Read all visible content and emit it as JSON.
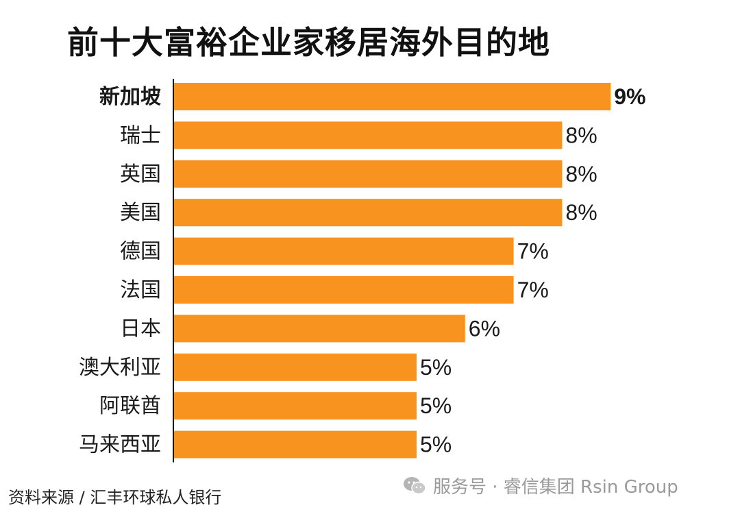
{
  "title": "前十大富裕企业家移居海外目的地",
  "source": "资料来源 / 汇丰环球私人银行",
  "watermark": {
    "text": "服务号 · 睿信集团 Rsin Group",
    "icon": "wechat-icon"
  },
  "colors": {
    "bar": "#F7931E",
    "text": "#1a1a1a",
    "axis": "#111111",
    "watermark": "#9a9a9a"
  },
  "chart_data": {
    "type": "bar",
    "orientation": "horizontal",
    "categories": [
      "新加坡",
      "瑞士",
      "英国",
      "美国",
      "德国",
      "法国",
      "日本",
      "澳大利亚",
      "阿联酋",
      "马来西亚"
    ],
    "values": [
      9,
      8,
      8,
      8,
      7,
      7,
      6,
      5,
      5,
      5
    ],
    "value_labels": [
      "9%",
      "8%",
      "8%",
      "8%",
      "7%",
      "7%",
      "6%",
      "5%",
      "5%",
      "5%"
    ],
    "highlight": "新加坡",
    "title": "前十大富裕企业家移居海外目的地",
    "xlabel": "",
    "ylabel": "",
    "unit": "%",
    "grid": false,
    "legend": false
  }
}
